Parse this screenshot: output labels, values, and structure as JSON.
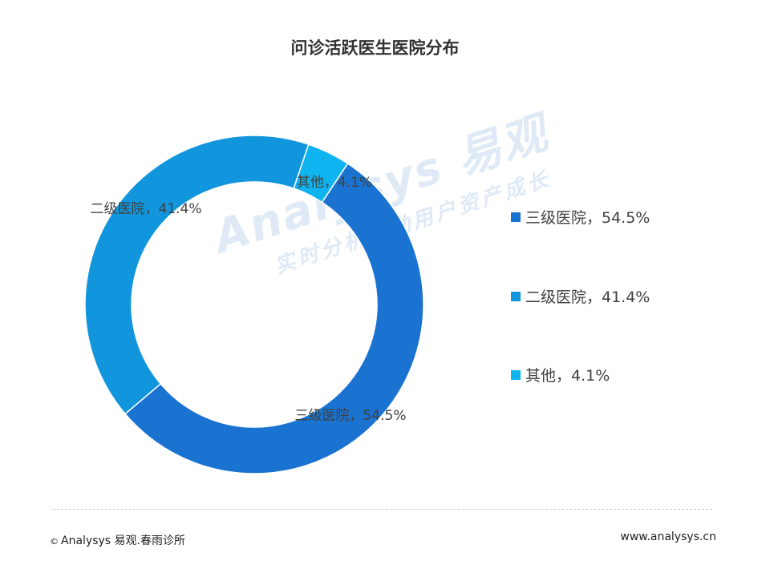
{
  "chart_data": {
    "type": "pie",
    "title": "问诊活跃医生医院分布",
    "series": [
      {
        "name": "三级医院",
        "value": 54.5,
        "label": "三级医院，54.5%",
        "color": "#1a73d0"
      },
      {
        "name": "二级医院",
        "value": 41.4,
        "label": "二级医院，41.4%",
        "color": "#1195dc"
      },
      {
        "name": "其他",
        "value": 4.1,
        "label": "其他，4.1%",
        "color": "#0fb3f0"
      }
    ],
    "legend": "right"
  },
  "watermark": {
    "logo": "Analysys 易观",
    "slogan": "实时分析驱动用户资产成长"
  },
  "footer": {
    "copyright_symbol": "©",
    "copyright": "Analysys 易观.春雨诊所",
    "website": "www.analysys.cn"
  }
}
